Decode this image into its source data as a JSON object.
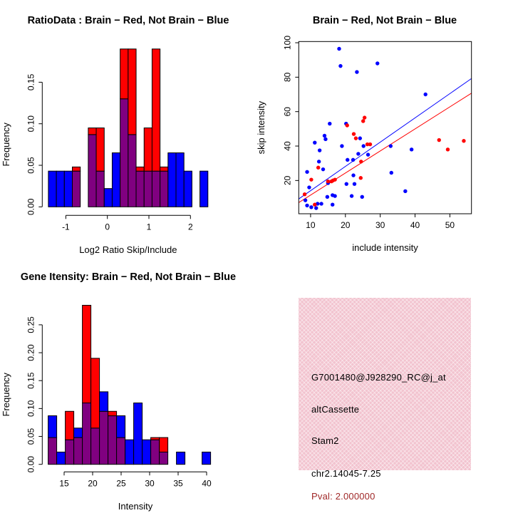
{
  "colors": {
    "blue": "#0000FF",
    "red": "#FF0000",
    "overlap_purple": "#800080",
    "axis_black": "#000000",
    "info_bg_pink": "#F2C3CF",
    "pval_dark_red": "#A02828"
  },
  "chart_data": [
    {
      "id": "ratio_hist",
      "type": "bar",
      "title": "RatioData : Brain − Red, Not Brain − Blue",
      "xlabel": "Log2 Ratio Skip/Include",
      "ylabel": "Frequency",
      "x_ticks": [
        -1,
        0,
        1,
        2
      ],
      "x_tick_labels": [
        "-1",
        "0",
        "1",
        "2"
      ],
      "y_ticks": [
        0,
        0.05,
        0.1,
        0.15
      ],
      "y_tick_labels": [
        "0.00",
        "0.05",
        "0.10",
        "0.15"
      ],
      "ylim": [
        0,
        0.19
      ],
      "bin_start": -1.42,
      "bin_width": 0.192,
      "legend": {
        "red": "Brain",
        "blue": "Not Brain"
      },
      "series": [
        {
          "name": "Not Brain (blue)",
          "values": [
            0.043,
            0.043,
            0.043,
            0.043,
            0,
            0.087,
            0.043,
            0.022,
            0.065,
            0.13,
            0.087,
            0.043,
            0.043,
            0.043,
            0.043,
            0.065,
            0.065,
            0.043,
            0,
            0.043
          ]
        },
        {
          "name": "Brain (red)",
          "values": [
            0,
            0,
            0,
            0.048,
            0,
            0.095,
            0.095,
            0,
            0,
            0.19,
            0.19,
            0.048,
            0.095,
            0.19,
            0.048,
            0,
            0,
            0,
            0,
            0
          ]
        }
      ]
    },
    {
      "id": "intensity_scatter",
      "type": "scatter",
      "title": "Brain − Red, Not Brain − Blue",
      "xlabel": "include intensity",
      "ylabel": "skip intensity",
      "x_ticks": [
        10,
        20,
        30,
        40,
        50
      ],
      "x_tick_labels": [
        "10",
        "20",
        "30",
        "40",
        "50"
      ],
      "y_ticks": [
        20,
        40,
        60,
        80,
        100
      ],
      "y_tick_labels": [
        "20",
        "40",
        "60",
        "80",
        "100"
      ],
      "xlim": [
        6.6,
        56.2
      ],
      "ylim": [
        0.7,
        100.7
      ],
      "series": [
        {
          "name": "Not Brain (blue)",
          "points": [
            [
              18.2,
              96.5
            ],
            [
              18.6,
              86.5
            ],
            [
              23.3,
              83
            ],
            [
              29.2,
              88
            ],
            [
              43,
              70
            ],
            [
              15.5,
              53
            ],
            [
              20.2,
              53
            ],
            [
              14,
              46
            ],
            [
              14.3,
              44
            ],
            [
              11.2,
              42
            ],
            [
              19,
              40
            ],
            [
              24.2,
              44.5
            ],
            [
              25.2,
              40
            ],
            [
              26.5,
              35
            ],
            [
              12.6,
              37.5
            ],
            [
              33,
              40
            ],
            [
              39,
              38
            ],
            [
              23.7,
              35.5
            ],
            [
              20.6,
              32
            ],
            [
              22.2,
              32
            ],
            [
              12.4,
              31
            ],
            [
              13.6,
              26.5
            ],
            [
              9,
              25
            ],
            [
              33.2,
              24.5
            ],
            [
              22.3,
              23
            ],
            [
              15,
              18.5
            ],
            [
              20.3,
              18
            ],
            [
              22.6,
              18
            ],
            [
              9.6,
              16
            ],
            [
              37.2,
              13.8
            ],
            [
              16.3,
              11.5
            ],
            [
              17,
              11
            ],
            [
              14.8,
              10.5
            ],
            [
              21.8,
              11
            ],
            [
              24.8,
              10.5
            ],
            [
              8.5,
              8.5
            ],
            [
              12,
              6.5
            ],
            [
              13.1,
              6.5
            ],
            [
              16.3,
              6
            ],
            [
              9,
              5.5
            ],
            [
              10.2,
              4.5
            ],
            [
              11.6,
              4
            ]
          ]
        },
        {
          "name": "Brain (red)",
          "points": [
            [
              25.5,
              56.5
            ],
            [
              25.1,
              54.5
            ],
            [
              20.5,
              52
            ],
            [
              22.4,
              47
            ],
            [
              23,
              44.5
            ],
            [
              46.9,
              43.5
            ],
            [
              54,
              43
            ],
            [
              49.4,
              38
            ],
            [
              26.3,
              41
            ],
            [
              27.1,
              41
            ],
            [
              24.5,
              31
            ],
            [
              12.2,
              27.5
            ],
            [
              10.2,
              20.5
            ],
            [
              15,
              19.5
            ],
            [
              16,
              19.5
            ],
            [
              16.4,
              20
            ],
            [
              17,
              20.5
            ],
            [
              24.4,
              21.5
            ],
            [
              8.3,
              12
            ],
            [
              11.2,
              6
            ]
          ]
        }
      ],
      "fit_lines": [
        {
          "name": "not-brain-fit",
          "color": "#0000FF",
          "x1": 6.6,
          "y1": 9.3,
          "x2": 56.2,
          "y2": 79.2
        },
        {
          "name": "brain-fit",
          "color": "#FF0000",
          "x1": 6.6,
          "y1": 7.2,
          "x2": 56.2,
          "y2": 70.7
        }
      ]
    },
    {
      "id": "gene_hist",
      "type": "bar",
      "title": "Gene Itensity: Brain − Red, Not Brain − Blue",
      "xlabel": "Intensity",
      "ylabel": "Frequency",
      "x_ticks": [
        15,
        20,
        25,
        30,
        35,
        40
      ],
      "x_tick_labels": [
        "15",
        "20",
        "25",
        "30",
        "35",
        "40"
      ],
      "y_ticks": [
        0,
        0.05,
        0.1,
        0.15,
        0.2,
        0.25
      ],
      "y_tick_labels": [
        "0.00",
        "0.05",
        "0.10",
        "0.15",
        "0.20",
        "0.25"
      ],
      "ylim": [
        0,
        0.285
      ],
      "bin_start": 12.2,
      "bin_width": 1.5,
      "legend": {
        "red": "Brain",
        "blue": "Not Brain"
      },
      "series": [
        {
          "name": "Not Brain (blue)",
          "values": [
            0.087,
            0.022,
            0.044,
            0.065,
            0.11,
            0.065,
            0.13,
            0.087,
            0.087,
            0.044,
            0.11,
            0.044,
            0.044,
            0.022,
            0,
            0.022,
            0,
            0,
            0.022
          ]
        },
        {
          "name": "Brain (red)",
          "values": [
            0.048,
            0,
            0.095,
            0.048,
            0.285,
            0.19,
            0.095,
            0.095,
            0.048,
            0,
            0,
            0,
            0.048,
            0.048,
            0,
            0,
            0,
            0,
            0
          ]
        }
      ]
    },
    {
      "id": "info_panel",
      "type": "table",
      "lines": [
        "G7001480@J928290_RC@j_at",
        "altCassette",
        "Stam2",
        "chr2.14045-7.25",
        "Pval: 2.000000"
      ]
    }
  ],
  "info": {
    "probe_id": "G7001480@J928290_RC@j_at",
    "event_type": "altCassette",
    "gene_name": "Stam2",
    "locus": "chr2.14045-7.25",
    "pval_label": "Pval: 2.000000"
  }
}
